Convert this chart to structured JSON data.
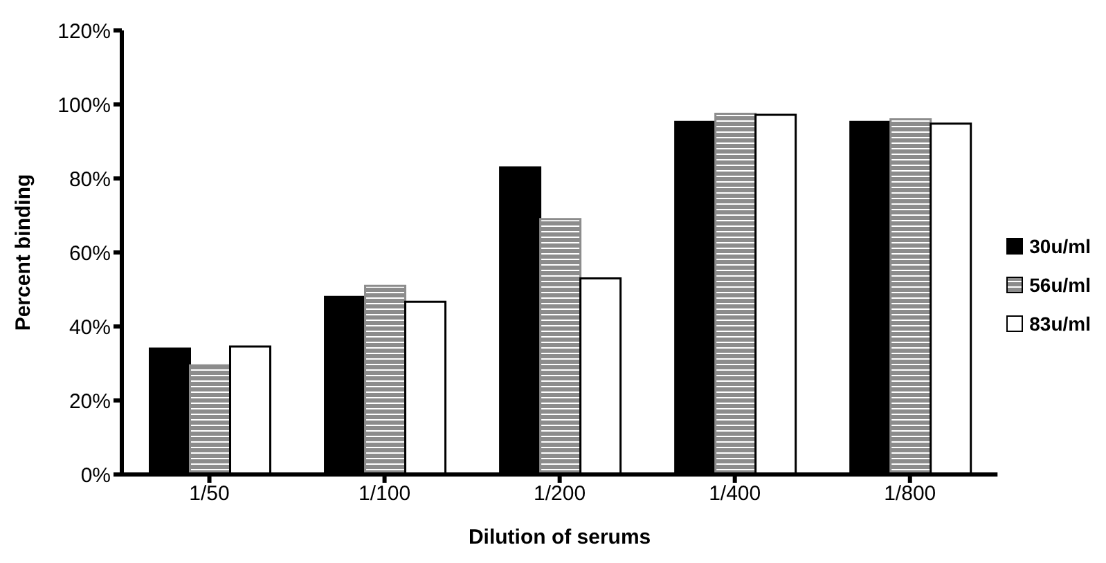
{
  "chart_data": {
    "type": "bar",
    "xlabel": "Dilution of serums",
    "ylabel": "Percent binding",
    "categories": [
      "1/50",
      "1/100",
      "1/200",
      "1/400",
      "1/800"
    ],
    "series": [
      {
        "name": "30u/ml",
        "color": "#000000",
        "values": [
          34,
          48,
          83,
          95.3,
          95.3
        ]
      },
      {
        "name": "56u/ml",
        "color": "#8c8c8c",
        "values": [
          29.5,
          51,
          69,
          97.5,
          96
        ]
      },
      {
        "name": "83u/ml",
        "color": "#ffffff",
        "values": [
          34.6,
          46.7,
          53,
          97.2,
          94.8
        ]
      }
    ],
    "ylim": [
      0,
      120
    ],
    "yticks": [
      {
        "value": 0,
        "label": "0%"
      },
      {
        "value": 20,
        "label": "20%"
      },
      {
        "value": 40,
        "label": "40%"
      },
      {
        "value": 60,
        "label": "60%"
      },
      {
        "value": 80,
        "label": "80%"
      },
      {
        "value": 100,
        "label": "100%"
      },
      {
        "value": 120,
        "label": "120%"
      }
    ],
    "grid": false,
    "legend": "right"
  }
}
